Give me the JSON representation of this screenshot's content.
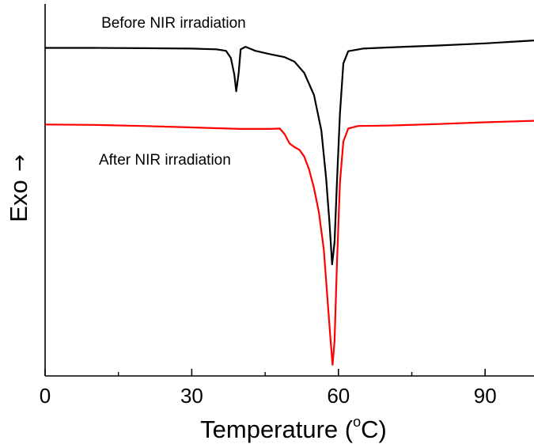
{
  "chart_data": {
    "type": "line",
    "xlabel": "Temperature (°C)",
    "xlabel_prefix": "Temperature (",
    "xlabel_degree": "o",
    "xlabel_suffix": "C)",
    "ylabel": "Exo",
    "ylabel_arrow": "→",
    "xlim": [
      0,
      100
    ],
    "ylim": [
      0,
      100
    ],
    "xticks": [
      0,
      30,
      60,
      90
    ],
    "xtick_labels": [
      "0",
      "30",
      "60",
      "90"
    ],
    "minor_xticks": [
      15,
      45,
      75
    ],
    "yticks_labeled": false,
    "grid": false,
    "legend": "none (inline labels)",
    "series": [
      {
        "name": "Before NIR irradiation",
        "color": "#000000",
        "points": [
          [
            0,
            88.2
          ],
          [
            10,
            88.2
          ],
          [
            20,
            88.1
          ],
          [
            30,
            88.0
          ],
          [
            35,
            87.8
          ],
          [
            37,
            87.4
          ],
          [
            38,
            85.5
          ],
          [
            38.7,
            81.0
          ],
          [
            39.1,
            76.5
          ],
          [
            39.6,
            81.5
          ],
          [
            40,
            87.8
          ],
          [
            41,
            88.5
          ],
          [
            43,
            87.4
          ],
          [
            46,
            86.5
          ],
          [
            49,
            85.7
          ],
          [
            51,
            84.5
          ],
          [
            53,
            81.5
          ],
          [
            55,
            75.5
          ],
          [
            56.5,
            66.0
          ],
          [
            57.5,
            53.0
          ],
          [
            58.2,
            40.5
          ],
          [
            58.7,
            30.0
          ],
          [
            59.2,
            36.0
          ],
          [
            59.7,
            52.0
          ],
          [
            60.3,
            70.5
          ],
          [
            61.0,
            84.0
          ],
          [
            62,
            87.3
          ],
          [
            65,
            88.0
          ],
          [
            70,
            88.3
          ],
          [
            80,
            88.8
          ],
          [
            90,
            89.4
          ],
          [
            100,
            90.2
          ]
        ]
      },
      {
        "name": "After NIR irradiation",
        "color": "#ff0000",
        "points": [
          [
            0,
            67.6
          ],
          [
            10,
            67.5
          ],
          [
            20,
            67.2
          ],
          [
            30,
            66.8
          ],
          [
            40,
            66.4
          ],
          [
            46,
            66.4
          ],
          [
            48,
            66.5
          ],
          [
            49,
            65.0
          ],
          [
            50,
            62.5
          ],
          [
            51,
            61.5
          ],
          [
            52,
            60.8
          ],
          [
            53,
            59.0
          ],
          [
            54,
            55.5
          ],
          [
            55,
            50.5
          ],
          [
            56,
            44.0
          ],
          [
            57,
            34.0
          ],
          [
            57.8,
            20.0
          ],
          [
            58.4,
            9.5
          ],
          [
            58.8,
            3.0
          ],
          [
            59.2,
            9.5
          ],
          [
            59.7,
            30.0
          ],
          [
            60.3,
            52.0
          ],
          [
            61.0,
            63.0
          ],
          [
            62,
            66.5
          ],
          [
            64,
            67.2
          ],
          [
            70,
            67.3
          ],
          [
            80,
            67.7
          ],
          [
            90,
            68.2
          ],
          [
            100,
            68.6
          ]
        ]
      }
    ],
    "annotations": [
      {
        "text": "Before NIR irradiation",
        "x": 11.5,
        "y": 93.6,
        "series": 0
      },
      {
        "text": "After NIR irradiation",
        "x": 11.0,
        "y": 56.8,
        "series": 1
      }
    ]
  }
}
